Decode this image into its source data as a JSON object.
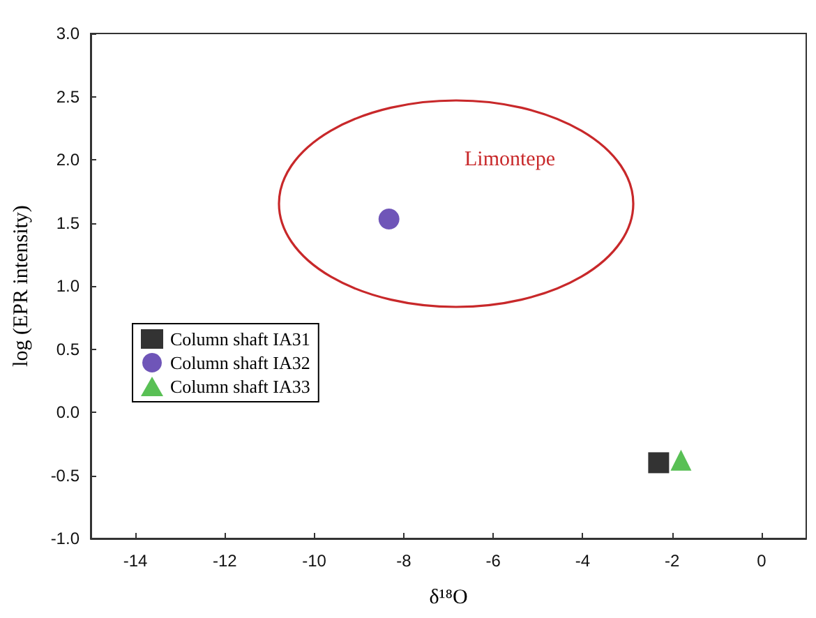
{
  "chart_data": {
    "type": "scatter",
    "xlabel": "δ¹⁸O",
    "ylabel": "log (EPR intensity)",
    "xlim": [
      -15,
      1
    ],
    "xticks": [
      -14,
      -12,
      -10,
      -8,
      -6,
      -4,
      -2,
      0
    ],
    "ylim": [
      -1,
      3
    ],
    "yticks": [
      {
        "value": -1,
        "label": "-1.0"
      },
      -0.5,
      {
        "value": 0,
        "label": "0.0"
      },
      0.5,
      {
        "value": 1,
        "label": "1.0"
      },
      1.5,
      {
        "value": 2,
        "label": "2.0"
      },
      2.5,
      {
        "value": 3,
        "label": "3.0"
      }
    ],
    "grid": false,
    "legend": "left",
    "annotations": [
      "Limontepe"
    ],
    "series": [
      {
        "name": "Column shaft IA31",
        "color": "#000000",
        "marker": "square",
        "x": [
          -2.3
        ],
        "values": [
          -0.4
        ]
      },
      {
        "name": "Column shaft IA32",
        "color": "#4b2aa6",
        "marker": "circle",
        "x": [
          -8.33
        ],
        "values": [
          1.53
        ]
      },
      {
        "name": "Column shaft IA33",
        "color": "#2fb02a",
        "marker": "triangle",
        "x": [
          -1.8
        ],
        "values": [
          -0.38
        ]
      }
    ]
  }
}
